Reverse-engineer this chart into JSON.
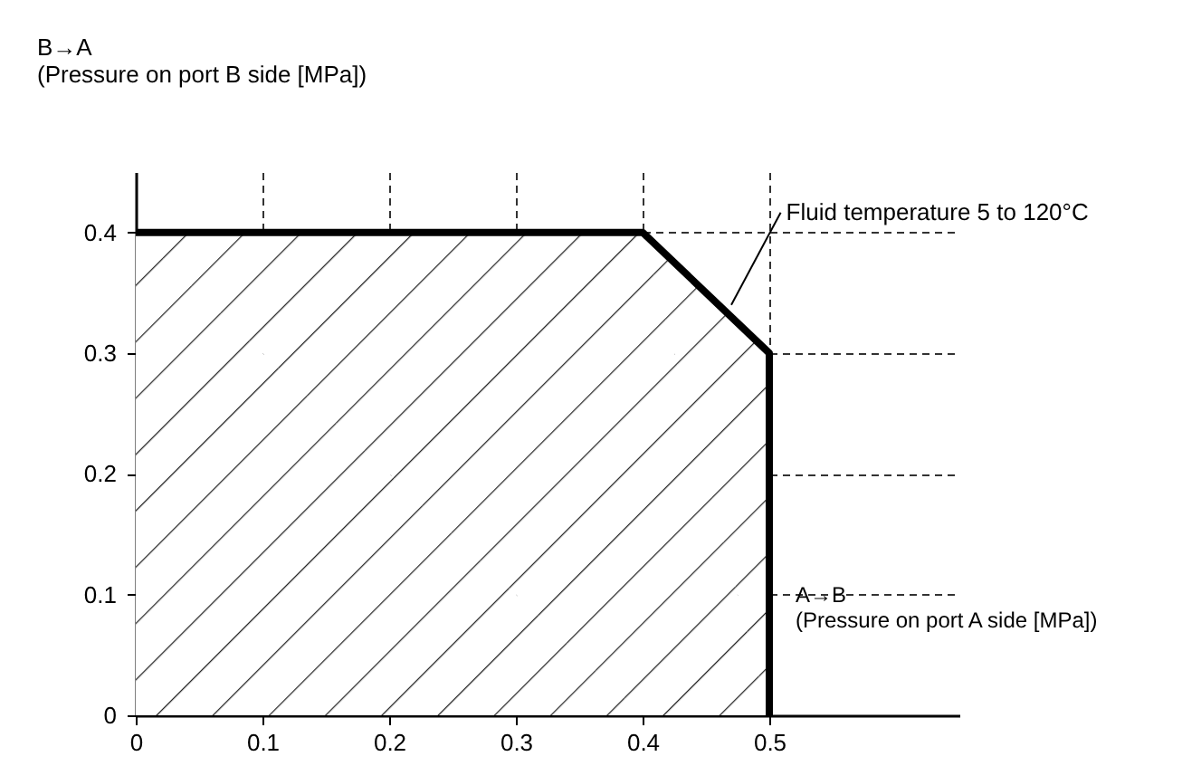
{
  "chart_data": {
    "type": "area",
    "xlabel": "A→B\n(Pressure on port A side [MPa])",
    "ylabel": "B→A\n(Pressure on port B side [MPa])",
    "annotations": [
      {
        "text": "Fluid temperature 5 to 120°C",
        "x": 0.47,
        "y": 0.34
      }
    ],
    "x": [
      0,
      0.4,
      0.5,
      0.5
    ],
    "series": [
      {
        "color": "#000000",
        "values": [
          0.4,
          0.4,
          0.3,
          0
        ]
      }
    ],
    "xlim": [
      0,
      0.65
    ],
    "xticks": [
      0,
      0.1,
      0.2,
      0.3,
      0.4,
      0.5
    ],
    "ylim": [
      0,
      0.45
    ],
    "yticks": [
      0,
      0.1,
      0.2,
      0.3,
      0.4
    ],
    "grid": true,
    "line_style": "solid"
  }
}
